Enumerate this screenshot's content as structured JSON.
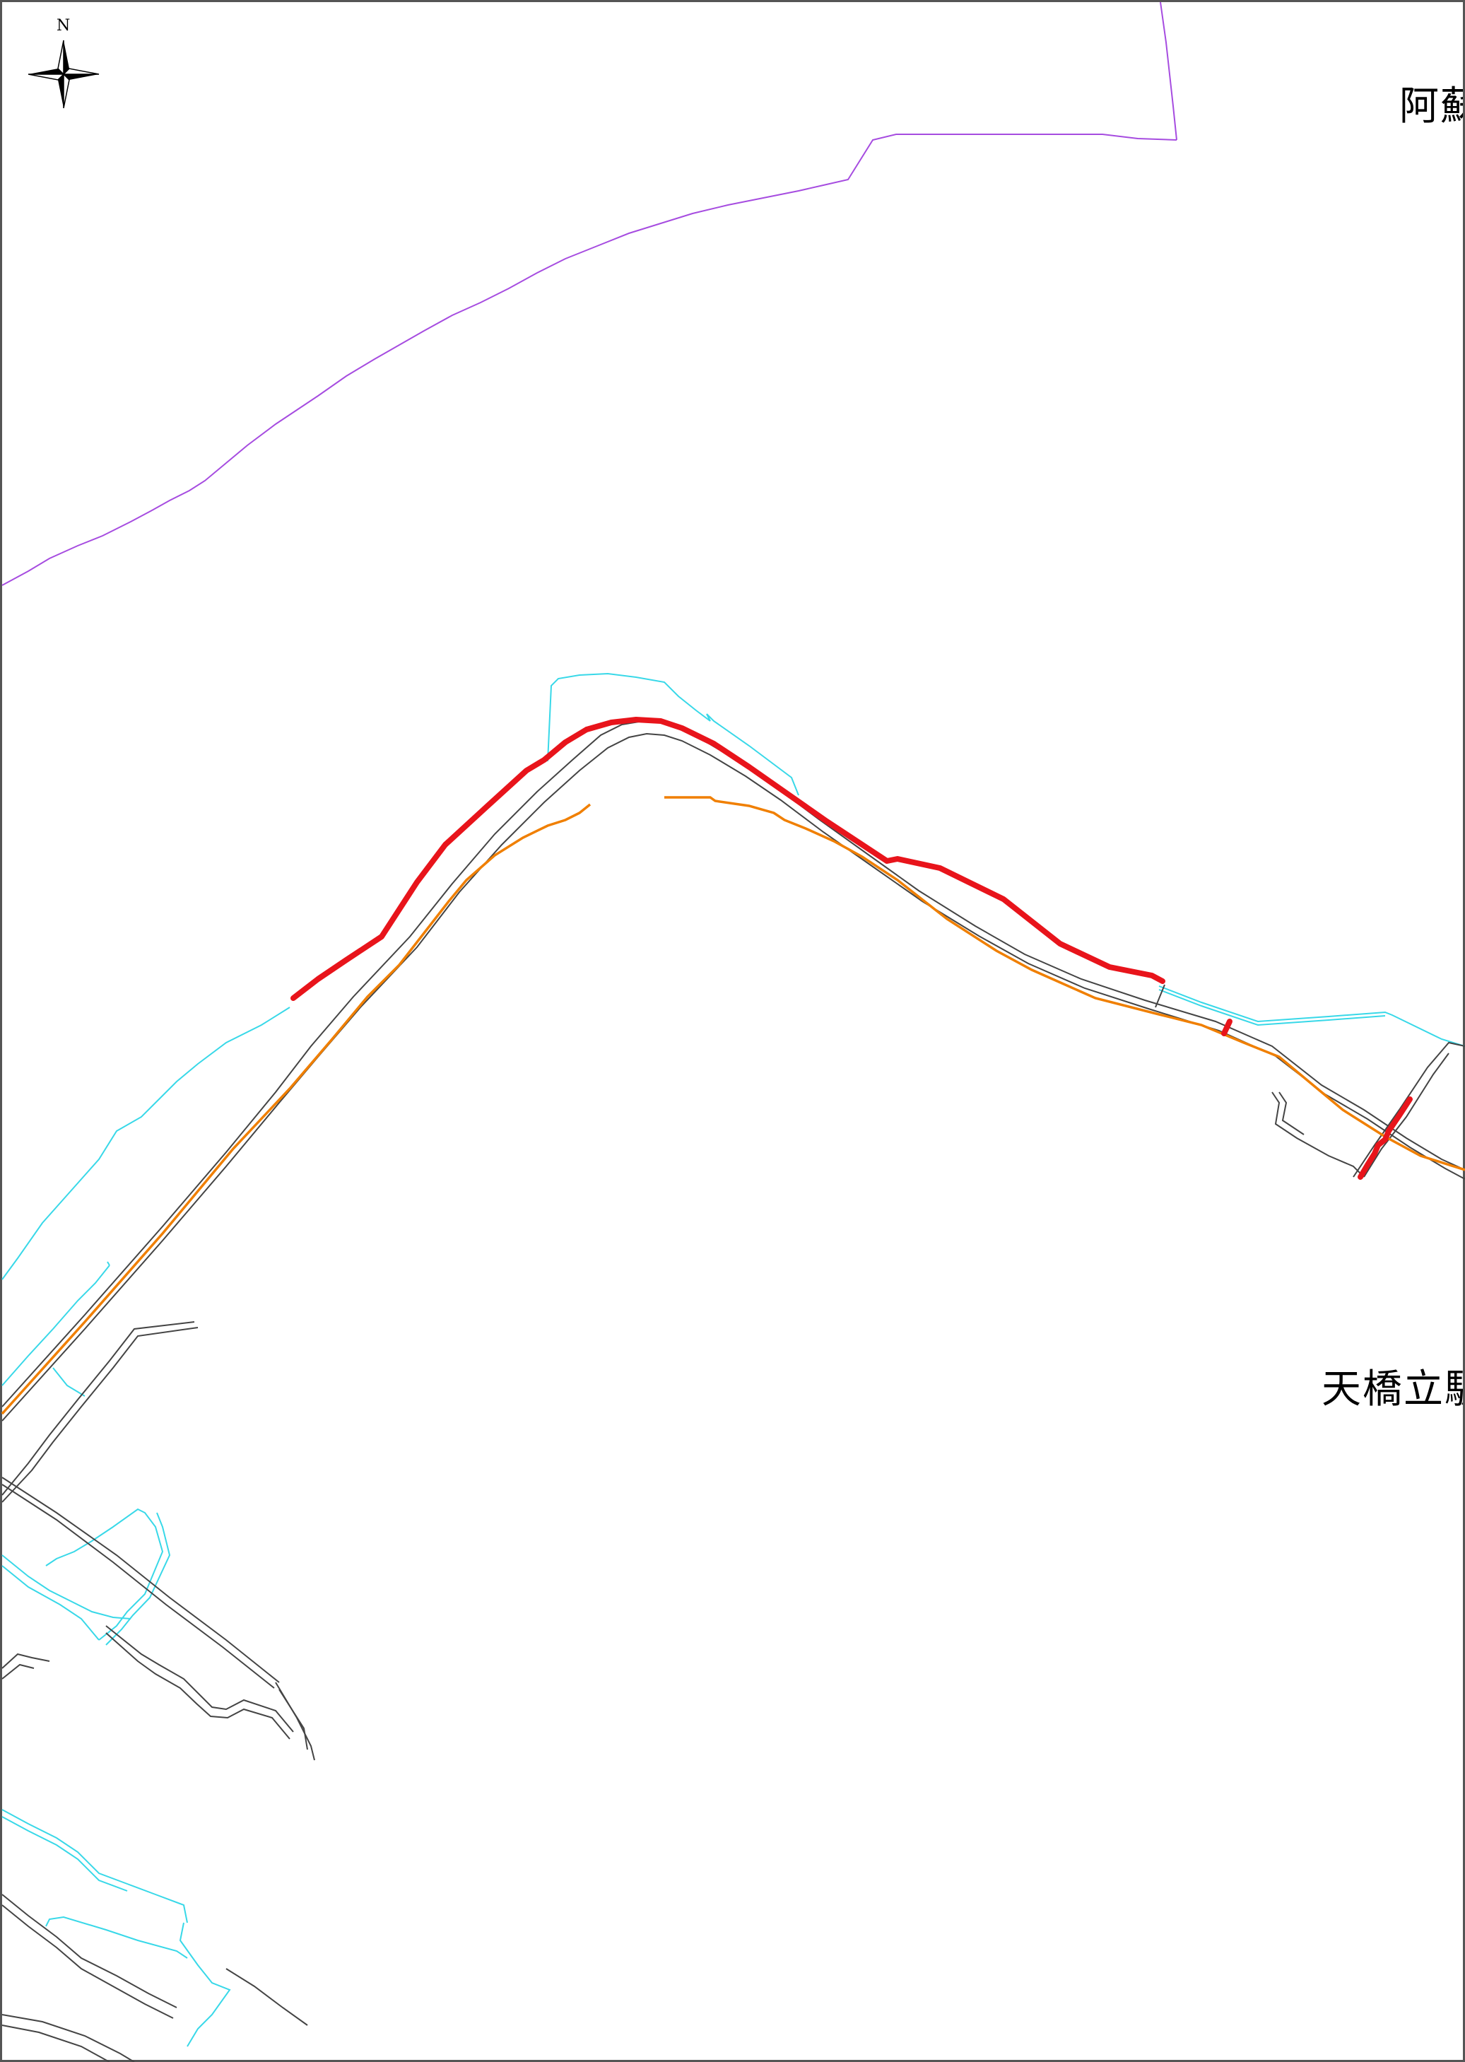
{
  "map": {
    "north_label": "N",
    "place_labels": {
      "top_right": "阿蘇",
      "mid_right": "天橋立駅"
    },
    "colors": {
      "highlight_route": "#e8141b",
      "rail_or_river": "#f07f00",
      "boundary": "#a64ce0",
      "waterway": "#38d8e8",
      "road": "#444444",
      "frame": "#555555"
    },
    "icons": {
      "compass": "north-arrow-icon"
    }
  }
}
